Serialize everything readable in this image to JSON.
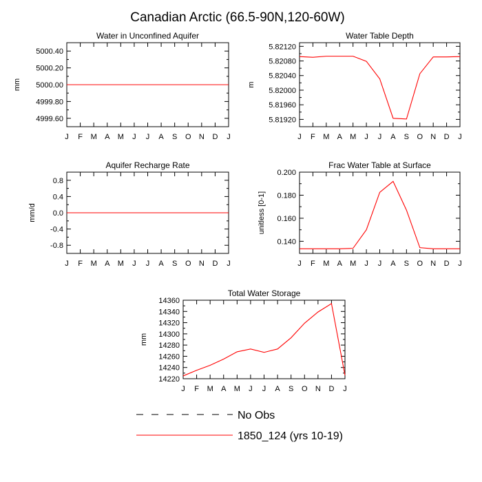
{
  "page_title": "Canadian Arctic (66.5-90N,120-60W)",
  "colors": {
    "series": "#ff0000",
    "axis": "#000000",
    "background": "#ffffff"
  },
  "chart_data": [
    {
      "type": "line",
      "title": "Water in Unconfined Aquifer",
      "ylabel": "mm",
      "xlabel": "",
      "categories": [
        "J",
        "F",
        "M",
        "A",
        "M",
        "J",
        "J",
        "A",
        "S",
        "O",
        "N",
        "D",
        "J"
      ],
      "ylim": [
        4999.5,
        5000.5
      ],
      "yticks": [
        4999.6,
        4999.8,
        5000.0,
        5000.2,
        5000.4
      ],
      "ytick_labels": [
        "4999.60",
        "4999.80",
        "5000.00",
        "5000.20",
        "5000.40"
      ],
      "series": [
        {
          "values": [
            5000.0,
            5000.0,
            5000.0,
            5000.0,
            5000.0,
            5000.0,
            5000.0,
            5000.0,
            5000.0,
            5000.0,
            5000.0,
            5000.0,
            5000.0
          ]
        }
      ]
    },
    {
      "type": "line",
      "title": "Water Table Depth",
      "ylabel": "m",
      "xlabel": "",
      "categories": [
        "J",
        "F",
        "M",
        "A",
        "M",
        "J",
        "J",
        "A",
        "S",
        "O",
        "N",
        "D",
        "J"
      ],
      "ylim": [
        5.819,
        5.8213
      ],
      "yticks": [
        5.8192,
        5.8196,
        5.82,
        5.8204,
        5.8208,
        5.8212
      ],
      "ytick_labels": [
        "5.81920",
        "5.81960",
        "5.82000",
        "5.82040",
        "5.82080",
        "5.82120"
      ],
      "series": [
        {
          "values": [
            5.82092,
            5.8209,
            5.82093,
            5.82093,
            5.82093,
            5.82079,
            5.82031,
            5.81923,
            5.81921,
            5.82045,
            5.82091,
            5.82091,
            5.82092
          ]
        }
      ]
    },
    {
      "type": "line",
      "title": "Aquifer Recharge Rate",
      "ylabel": "mm/d",
      "xlabel": "",
      "categories": [
        "J",
        "F",
        "M",
        "A",
        "M",
        "J",
        "J",
        "A",
        "S",
        "O",
        "N",
        "D",
        "J"
      ],
      "ylim": [
        -1.0,
        1.0
      ],
      "yticks": [
        -0.8,
        -0.4,
        0.0,
        0.4,
        0.8
      ],
      "ytick_labels": [
        "-0.8",
        "-0.4",
        "0.0",
        "0.4",
        "0.8"
      ],
      "series": [
        {
          "values": [
            0,
            0,
            0,
            0,
            0,
            0,
            0,
            0,
            0,
            0,
            0,
            0,
            0
          ]
        }
      ]
    },
    {
      "type": "line",
      "title": "Frac Water Table at Surface",
      "ylabel": "unitless [0-1]",
      "xlabel": "",
      "categories": [
        "J",
        "F",
        "M",
        "A",
        "M",
        "J",
        "J",
        "A",
        "S",
        "O",
        "N",
        "D",
        "J"
      ],
      "ylim": [
        0.1295,
        0.2
      ],
      "yticks": [
        0.14,
        0.16,
        0.18,
        0.2
      ],
      "ytick_labels": [
        "0.140",
        "0.160",
        "0.180",
        "0.200"
      ],
      "series": [
        {
          "values": [
            0.1335,
            0.1335,
            0.1335,
            0.1335,
            0.1339,
            0.15,
            0.1825,
            0.192,
            0.167,
            0.1345,
            0.1335,
            0.1335,
            0.1335
          ]
        }
      ]
    },
    {
      "type": "line",
      "title": "Total Water Storage",
      "ylabel": "mm",
      "xlabel": "",
      "categories": [
        "J",
        "F",
        "M",
        "A",
        "M",
        "J",
        "J",
        "A",
        "S",
        "O",
        "N",
        "D",
        "J"
      ],
      "ylim": [
        14220,
        14360
      ],
      "yticks": [
        14220,
        14240,
        14260,
        14280,
        14300,
        14320,
        14340,
        14360
      ],
      "ytick_labels": [
        "14220",
        "14240",
        "14260",
        "14280",
        "14300",
        "14320",
        "14340",
        "14360"
      ],
      "series": [
        {
          "values": [
            14225,
            14235,
            14244,
            14255,
            14268,
            14273,
            14267,
            14273,
            14293,
            14319,
            14339,
            14354,
            14226
          ]
        }
      ]
    }
  ],
  "legend": {
    "items": [
      {
        "label": "No Obs",
        "style": "dashed",
        "color": "#000000"
      },
      {
        "label": "1850_124 (yrs 10-19)",
        "style": "solid",
        "color": "#ff0000"
      }
    ]
  }
}
